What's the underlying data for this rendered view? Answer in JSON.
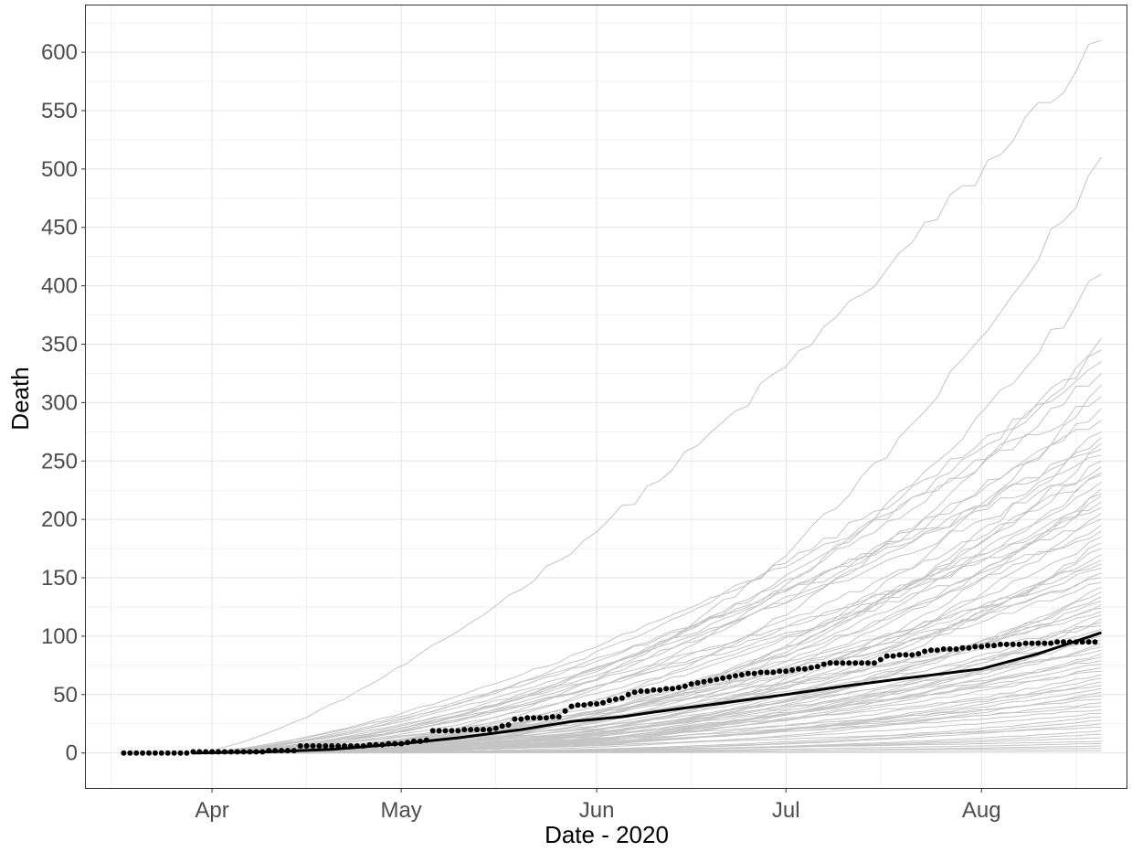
{
  "chart_data": {
    "type": "line",
    "title": "",
    "xlabel": "Date - 2020",
    "ylabel": "Death",
    "xlim": [
      "2020-03-12",
      "2020-08-24"
    ],
    "ylim": [
      -30,
      640
    ],
    "x_ticks": [
      {
        "date": "2020-04-01",
        "label": "Apr"
      },
      {
        "date": "2020-05-01",
        "label": "May"
      },
      {
        "date": "2020-06-01",
        "label": "Jun"
      },
      {
        "date": "2020-07-01",
        "label": "Jul"
      },
      {
        "date": "2020-08-01",
        "label": "Aug"
      }
    ],
    "x_minor_ticks": [
      "2020-03-16",
      "2020-04-16",
      "2020-05-16",
      "2020-06-16",
      "2020-07-16",
      "2020-08-16"
    ],
    "y_ticks": [
      0,
      50,
      100,
      150,
      200,
      250,
      300,
      350,
      400,
      450,
      500,
      550,
      600
    ],
    "y_minor_ticks": [
      25,
      75,
      125,
      175,
      225,
      275,
      325,
      375,
      425,
      475,
      525,
      575,
      625
    ],
    "grid": true,
    "legend": "none",
    "simulation_start": "2020-03-29",
    "simulation_end": "2020-08-20",
    "simulated_final_values": [
      610,
      510,
      410,
      355,
      345,
      335,
      325,
      315,
      305,
      295,
      285,
      275,
      270,
      265,
      260,
      255,
      250,
      245,
      240,
      238,
      232,
      226,
      222,
      220,
      215,
      210,
      205,
      200,
      195,
      190,
      185,
      180,
      175,
      170,
      165,
      162,
      158,
      154,
      150,
      146,
      142,
      138,
      134,
      130,
      127,
      124,
      121,
      118,
      115,
      112,
      109,
      106,
      103,
      100,
      97,
      94,
      91,
      88,
      85,
      82,
      79,
      76,
      73,
      70,
      67,
      64,
      61,
      58,
      55,
      52,
      49,
      46,
      43,
      40,
      37,
      34,
      31,
      28,
      25,
      22,
      19,
      16,
      13,
      10,
      8,
      6,
      4,
      2
    ],
    "series": [
      {
        "name": "",
        "kind": "line",
        "color": "#000000",
        "points": [
          {
            "x": "2020-03-29",
            "y": 0
          },
          {
            "x": "2020-04-10",
            "y": 1
          },
          {
            "x": "2020-04-20",
            "y": 3
          },
          {
            "x": "2020-05-01",
            "y": 8
          },
          {
            "x": "2020-05-10",
            "y": 13
          },
          {
            "x": "2020-05-20",
            "y": 20
          },
          {
            "x": "2020-05-28",
            "y": 27
          },
          {
            "x": "2020-06-05",
            "y": 31
          },
          {
            "x": "2020-06-10",
            "y": 35
          },
          {
            "x": "2020-06-20",
            "y": 42
          },
          {
            "x": "2020-07-01",
            "y": 50
          },
          {
            "x": "2020-07-10",
            "y": 57
          },
          {
            "x": "2020-07-20",
            "y": 64
          },
          {
            "x": "2020-08-01",
            "y": 72
          },
          {
            "x": "2020-08-10",
            "y": 85
          },
          {
            "x": "2020-08-20",
            "y": 103
          }
        ]
      },
      {
        "name": "",
        "kind": "points",
        "color": "#000000",
        "points": [
          {
            "x": "2020-03-18",
            "y": 0
          },
          {
            "x": "2020-03-28",
            "y": 0
          },
          {
            "x": "2020-03-29",
            "y": 1
          },
          {
            "x": "2020-04-09",
            "y": 1
          },
          {
            "x": "2020-04-10",
            "y": 2
          },
          {
            "x": "2020-04-14",
            "y": 2
          },
          {
            "x": "2020-04-15",
            "y": 6
          },
          {
            "x": "2020-04-25",
            "y": 6
          },
          {
            "x": "2020-04-26",
            "y": 7
          },
          {
            "x": "2020-05-01",
            "y": 8
          },
          {
            "x": "2020-05-05",
            "y": 11
          },
          {
            "x": "2020-05-06",
            "y": 19
          },
          {
            "x": "2020-05-15",
            "y": 20
          },
          {
            "x": "2020-05-18",
            "y": 24
          },
          {
            "x": "2020-05-19",
            "y": 29
          },
          {
            "x": "2020-05-26",
            "y": 31
          },
          {
            "x": "2020-05-28",
            "y": 40
          },
          {
            "x": "2020-06-01",
            "y": 42
          },
          {
            "x": "2020-06-05",
            "y": 47
          },
          {
            "x": "2020-06-07",
            "y": 52
          },
          {
            "x": "2020-06-13",
            "y": 55
          },
          {
            "x": "2020-06-19",
            "y": 62
          },
          {
            "x": "2020-06-24",
            "y": 67
          },
          {
            "x": "2020-06-28",
            "y": 69
          },
          {
            "x": "2020-07-01",
            "y": 70
          },
          {
            "x": "2020-07-06",
            "y": 74
          },
          {
            "x": "2020-07-08",
            "y": 77
          },
          {
            "x": "2020-07-15",
            "y": 77
          },
          {
            "x": "2020-07-17",
            "y": 83
          },
          {
            "x": "2020-07-21",
            "y": 84
          },
          {
            "x": "2020-07-24",
            "y": 88
          },
          {
            "x": "2020-07-28",
            "y": 89
          },
          {
            "x": "2020-08-01",
            "y": 91
          },
          {
            "x": "2020-08-05",
            "y": 93
          },
          {
            "x": "2020-08-11",
            "y": 94
          },
          {
            "x": "2020-08-15",
            "y": 95
          },
          {
            "x": "2020-08-19",
            "y": 95
          }
        ]
      }
    ],
    "colors": {
      "simulation_line": "#c4c4c4",
      "observed": "#000000",
      "grid_major": "#e3e3e3",
      "grid_minor": "#f1f1f1",
      "tick_label": "#4d4d4d",
      "axis_title": "#000000",
      "panel_border": "#333333"
    }
  }
}
